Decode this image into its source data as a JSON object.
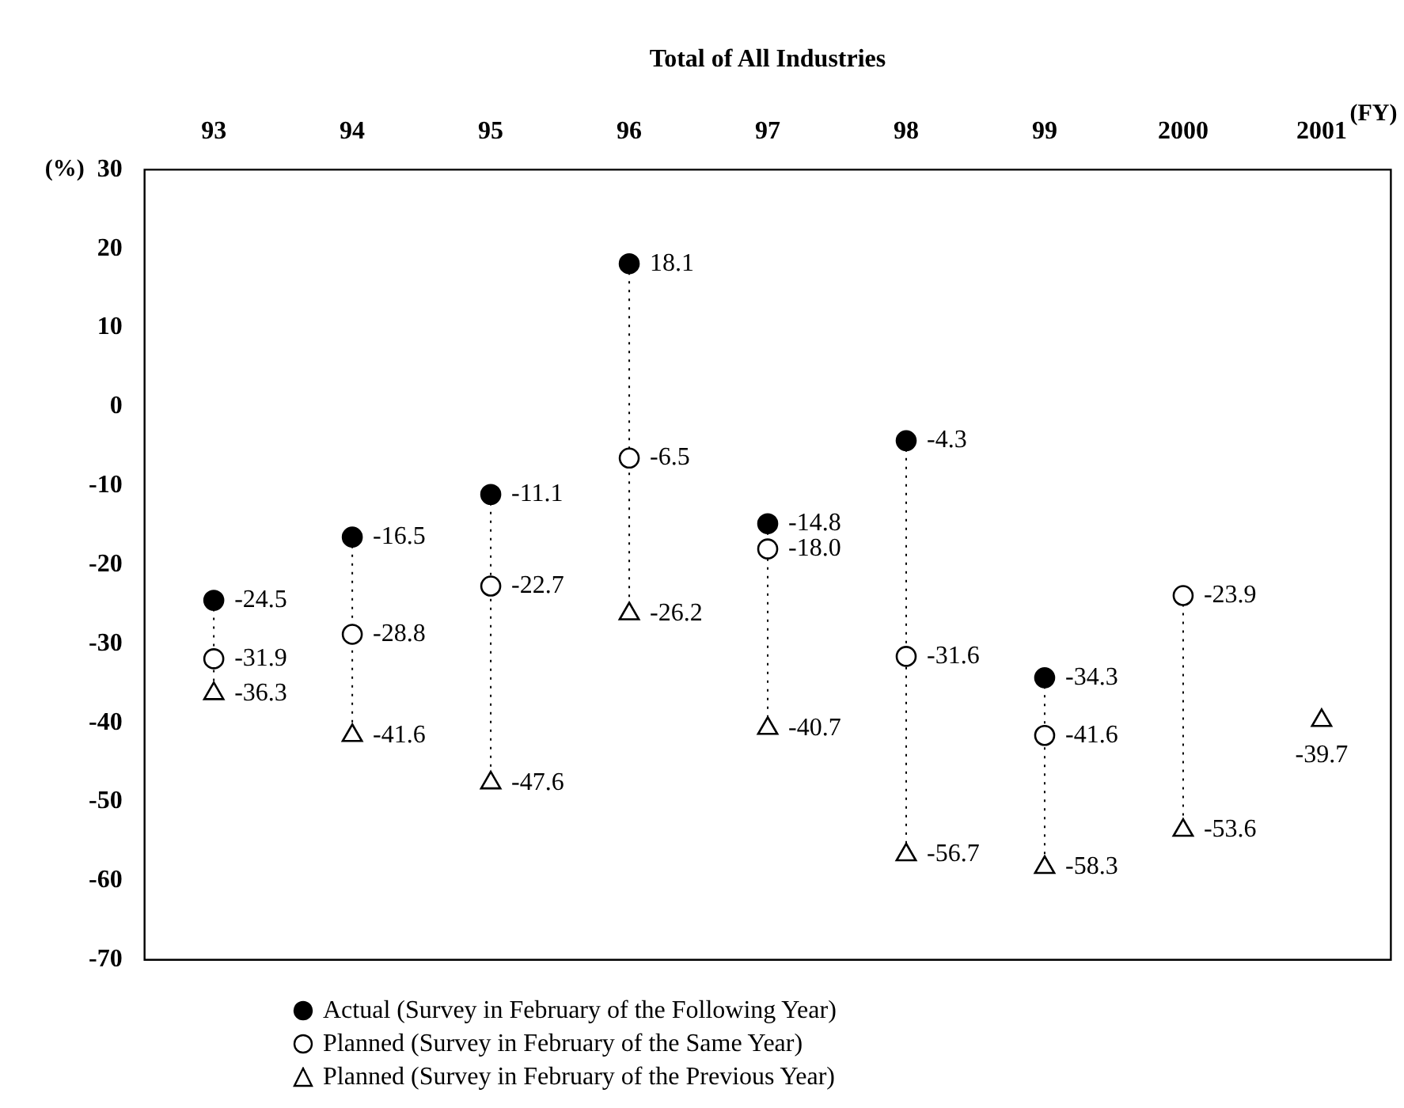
{
  "chart_data": {
    "type": "scatter",
    "title": "Total of All Industries",
    "xlabel": "(FY)",
    "ylabel": "(%)",
    "categories": [
      "93",
      "94",
      "95",
      "96",
      "97",
      "98",
      "99",
      "2000",
      "2001"
    ],
    "ylim": [
      -70,
      30
    ],
    "yticks": [
      30,
      20,
      10,
      0,
      -10,
      -20,
      -30,
      -40,
      -50,
      -60,
      -70
    ],
    "grid": false,
    "legend": "bottom left",
    "marker": "circle",
    "series": [
      {
        "name": "Actual (Survey in February of the Following Year)",
        "color": "#000000",
        "values": [
          -24.5,
          -16.5,
          -11.1,
          18.1,
          -14.8,
          -4.3,
          -34.3,
          null,
          null
        ],
        "value_labels": [
          "-24.5",
          "-16.5",
          "-11.1",
          "18.1",
          "-14.8",
          "-4.3",
          "-34.3",
          null,
          null
        ]
      },
      {
        "name": "Planned (Survey in February of the Same Year)",
        "color": "#ffffff",
        "values": [
          -31.9,
          -28.8,
          -22.7,
          -6.5,
          -18.0,
          -31.6,
          -41.6,
          -23.9,
          null
        ],
        "value_labels": [
          "-31.9",
          "-28.8",
          "-22.7",
          "-6.5",
          "-18.0",
          "-31.6",
          "-41.6",
          "-23.9",
          null
        ]
      },
      {
        "name": "Planned (Survey in February of the Previous Year)",
        "color": "#ffffff",
        "marker": "triangle",
        "values": [
          -36.3,
          -41.6,
          -47.6,
          -26.2,
          -40.7,
          -56.7,
          -58.3,
          -53.6,
          -39.7
        ],
        "value_labels": [
          "-36.3",
          "-41.6",
          "-47.6",
          "-26.2",
          "-40.7",
          "-56.7",
          "-58.3",
          "-53.6",
          "-39.7"
        ]
      }
    ]
  }
}
